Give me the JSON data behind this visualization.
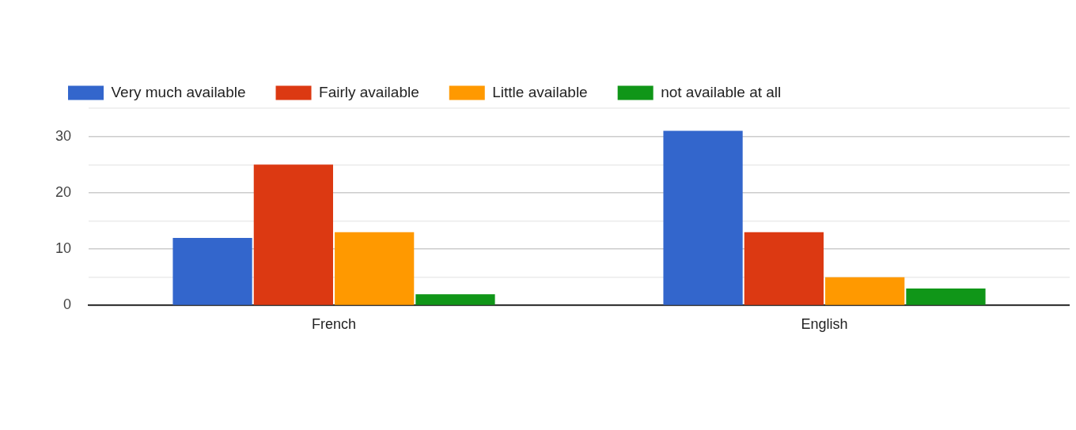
{
  "chart_data": {
    "type": "bar",
    "categories": [
      "French",
      "English"
    ],
    "series": [
      {
        "name": "Very much available",
        "color": "#3366cc",
        "values": [
          12,
          31
        ]
      },
      {
        "name": "Fairly available",
        "color": "#dc3912",
        "values": [
          25,
          13
        ]
      },
      {
        "name": "Little available",
        "color": "#ff9900",
        "values": [
          13,
          5
        ]
      },
      {
        "name": "not available at all",
        "color": "#109618",
        "values": [
          2,
          3
        ]
      }
    ],
    "ylim": [
      0,
      35
    ],
    "yticks": [
      0,
      {
        "value": 5,
        "label": null
      },
      10,
      {
        "value": 15,
        "label": null
      },
      20,
      {
        "value": 25,
        "label": null
      },
      30,
      {
        "value": 35,
        "label": null
      }
    ],
    "grid": "y",
    "legend": "top left"
  }
}
